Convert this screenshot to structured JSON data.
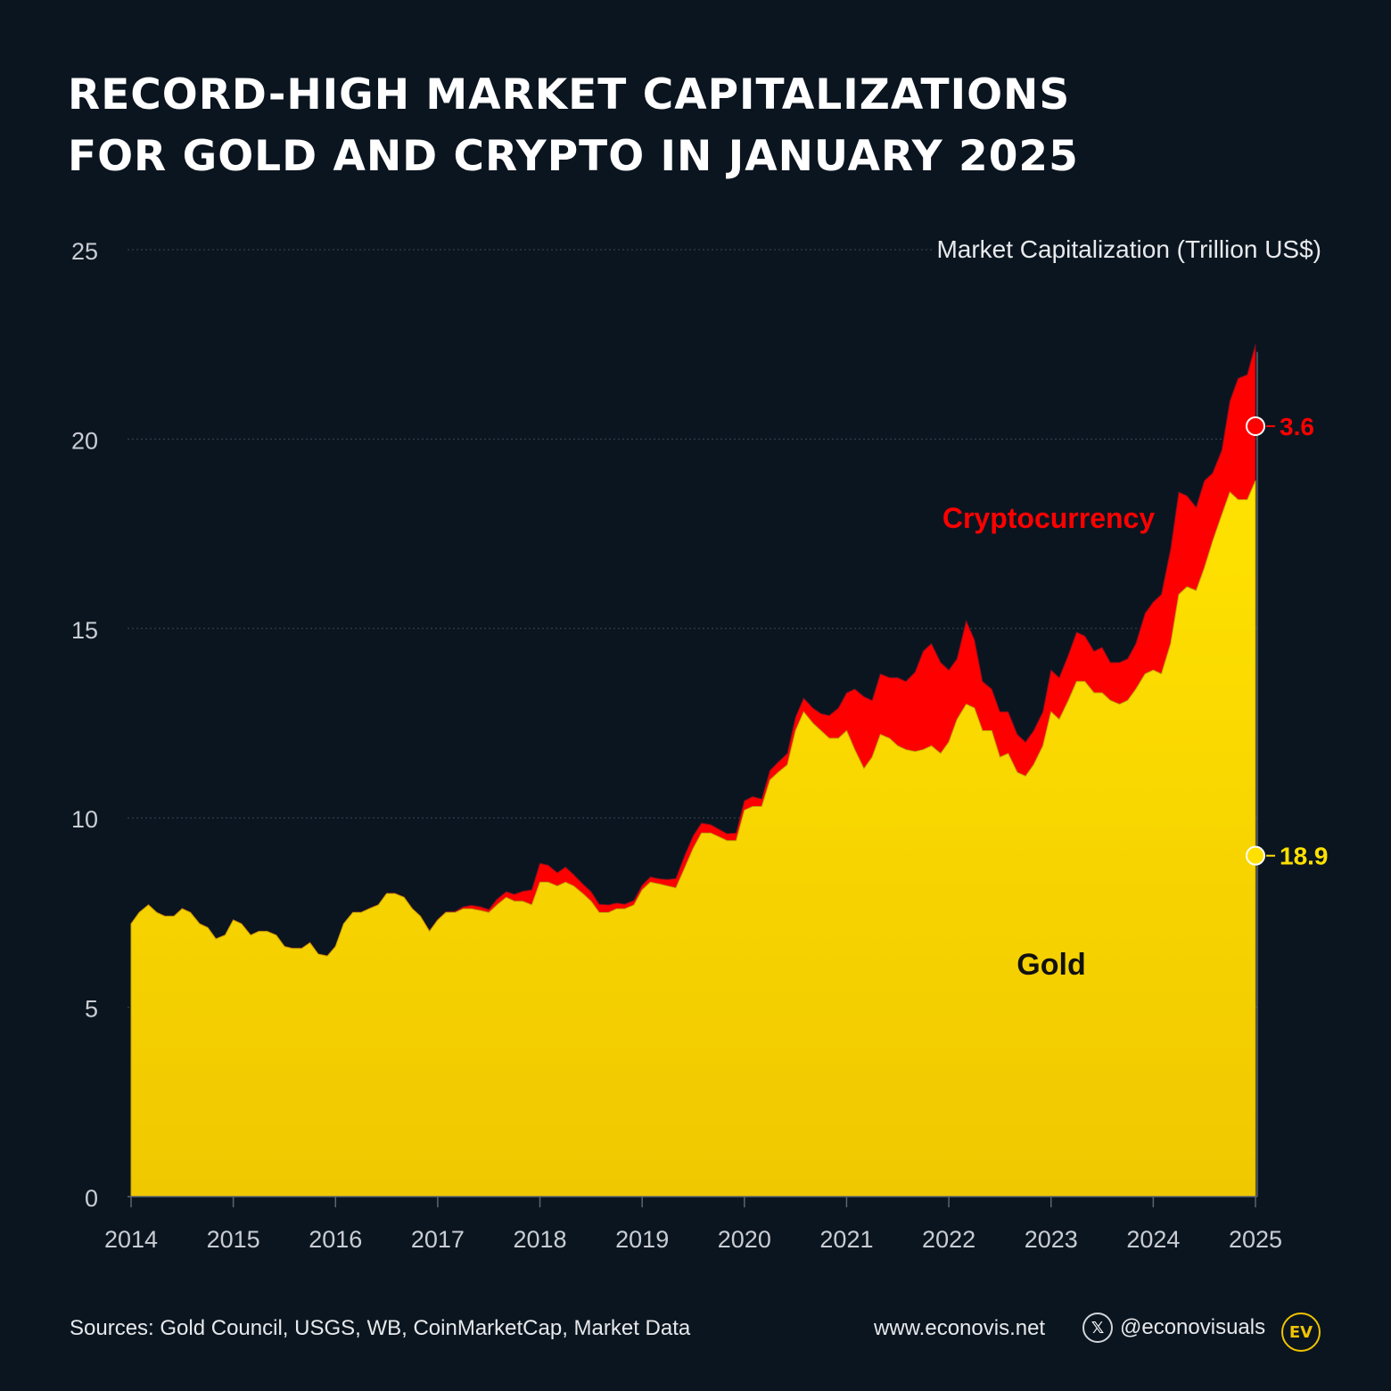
{
  "title": {
    "line1": "RECORD-HIGH MARKET CAPITALIZATIONS",
    "line2": "FOR GOLD AND CRYPTO IN JANUARY 2025"
  },
  "footer": {
    "sources": "Sources: Gold Council, USGS, WB, CoinMarketCap, Market Data",
    "website": "www.econovis.net",
    "social_handle": "@econovisuals",
    "social_icon": "x-icon",
    "logo_text": "EV"
  },
  "colors": {
    "background": "#0b1520",
    "gold": "#f5d000",
    "gold_light": "#ffe400",
    "crypto": "#ff0000",
    "grid": "#3a4654",
    "axis_text": "#c9cdd2"
  },
  "chart_data": {
    "type": "area",
    "stacked": true,
    "title": "RECORD-HIGH MARKET CAPITALIZATIONS FOR GOLD AND CRYPTO IN JANUARY 2025",
    "ylabel": "Market Capitalization (Trillion US$)",
    "xlabel": "",
    "ylim": [
      0,
      25
    ],
    "xlim": [
      2014,
      2025.05
    ],
    "yticks": [
      0,
      5,
      10,
      15,
      20,
      25
    ],
    "xticks": [
      2014,
      2015,
      2016,
      2017,
      2018,
      2019,
      2020,
      2021,
      2022,
      2023,
      2024,
      2025
    ],
    "grid": true,
    "legend": "inline labels",
    "series_labels": {
      "gold": "Gold",
      "crypto": "Cryptocurrency"
    },
    "x": [
      2014.0,
      2014.08,
      2014.17,
      2014.25,
      2014.33,
      2014.42,
      2014.5,
      2014.58,
      2014.67,
      2014.75,
      2014.83,
      2014.92,
      2015.0,
      2015.08,
      2015.17,
      2015.25,
      2015.33,
      2015.42,
      2015.5,
      2015.58,
      2015.67,
      2015.75,
      2015.83,
      2015.92,
      2016.0,
      2016.08,
      2016.17,
      2016.25,
      2016.33,
      2016.42,
      2016.5,
      2016.58,
      2016.67,
      2016.75,
      2016.83,
      2016.92,
      2017.0,
      2017.08,
      2017.17,
      2017.25,
      2017.33,
      2017.42,
      2017.5,
      2017.58,
      2017.67,
      2017.75,
      2017.83,
      2017.92,
      2018.0,
      2018.08,
      2018.17,
      2018.25,
      2018.33,
      2018.42,
      2018.5,
      2018.58,
      2018.67,
      2018.75,
      2018.83,
      2018.92,
      2019.0,
      2019.08,
      2019.17,
      2019.25,
      2019.33,
      2019.42,
      2019.5,
      2019.58,
      2019.67,
      2019.75,
      2019.83,
      2019.92,
      2020.0,
      2020.08,
      2020.17,
      2020.25,
      2020.33,
      2020.42,
      2020.5,
      2020.58,
      2020.67,
      2020.75,
      2020.83,
      2020.92,
      2021.0,
      2021.08,
      2021.17,
      2021.25,
      2021.33,
      2021.42,
      2021.5,
      2021.58,
      2021.67,
      2021.75,
      2021.83,
      2021.92,
      2022.0,
      2022.08,
      2022.17,
      2022.25,
      2022.33,
      2022.42,
      2022.5,
      2022.58,
      2022.67,
      2022.75,
      2022.83,
      2022.92,
      2023.0,
      2023.08,
      2023.17,
      2023.25,
      2023.33,
      2023.42,
      2023.5,
      2023.58,
      2023.67,
      2023.75,
      2023.83,
      2023.92,
      2024.0,
      2024.08,
      2024.17,
      2024.25,
      2024.33,
      2024.42,
      2024.5,
      2024.58,
      2024.67,
      2024.75,
      2024.83,
      2024.92,
      2025.0
    ],
    "series": [
      {
        "name": "Gold",
        "values": [
          7.2,
          7.5,
          7.7,
          7.5,
          7.4,
          7.4,
          7.6,
          7.5,
          7.2,
          7.1,
          6.8,
          6.9,
          7.3,
          7.2,
          6.9,
          7.0,
          7.0,
          6.9,
          6.6,
          6.55,
          6.55,
          6.7,
          6.4,
          6.35,
          6.6,
          7.2,
          7.5,
          7.5,
          7.6,
          7.7,
          8.0,
          8.0,
          7.9,
          7.6,
          7.4,
          7.0,
          7.3,
          7.5,
          7.5,
          7.6,
          7.6,
          7.55,
          7.5,
          7.7,
          7.9,
          7.8,
          7.8,
          7.7,
          8.3,
          8.3,
          8.2,
          8.3,
          8.2,
          8.0,
          7.8,
          7.5,
          7.5,
          7.6,
          7.6,
          7.7,
          8.1,
          8.3,
          8.25,
          8.2,
          8.15,
          8.7,
          9.2,
          9.6,
          9.6,
          9.5,
          9.4,
          9.4,
          10.2,
          10.3,
          10.3,
          11.0,
          11.2,
          11.4,
          12.3,
          12.8,
          12.5,
          12.3,
          12.1,
          12.1,
          12.3,
          11.8,
          11.3,
          11.6,
          12.2,
          12.1,
          11.9,
          11.8,
          11.75,
          11.8,
          11.9,
          11.7,
          12.0,
          12.6,
          13.0,
          12.9,
          12.3,
          12.3,
          11.6,
          11.7,
          11.2,
          11.1,
          11.4,
          11.9,
          12.8,
          12.6,
          13.1,
          13.6,
          13.6,
          13.3,
          13.3,
          13.1,
          13.0,
          13.1,
          13.4,
          13.8,
          13.9,
          13.8,
          14.6,
          15.9,
          16.1,
          16.0,
          16.6,
          17.3,
          18.0,
          18.6,
          18.4,
          18.4,
          18.9
        ]
      },
      {
        "name": "Cryptocurrency",
        "values": [
          0.01,
          0.01,
          0.01,
          0.01,
          0.01,
          0.01,
          0.01,
          0.01,
          0.01,
          0.01,
          0.01,
          0.01,
          0.01,
          0.01,
          0.01,
          0.01,
          0.01,
          0.01,
          0.01,
          0.01,
          0.01,
          0.01,
          0.01,
          0.01,
          0.01,
          0.01,
          0.01,
          0.01,
          0.01,
          0.01,
          0.01,
          0.01,
          0.01,
          0.01,
          0.01,
          0.02,
          0.02,
          0.02,
          0.03,
          0.05,
          0.09,
          0.1,
          0.08,
          0.15,
          0.15,
          0.18,
          0.26,
          0.4,
          0.5,
          0.45,
          0.35,
          0.4,
          0.3,
          0.25,
          0.25,
          0.22,
          0.2,
          0.15,
          0.12,
          0.12,
          0.12,
          0.14,
          0.14,
          0.17,
          0.25,
          0.33,
          0.33,
          0.26,
          0.22,
          0.2,
          0.18,
          0.2,
          0.25,
          0.26,
          0.2,
          0.25,
          0.27,
          0.3,
          0.35,
          0.36,
          0.4,
          0.45,
          0.6,
          0.8,
          1.0,
          1.6,
          1.9,
          1.5,
          1.6,
          1.6,
          1.8,
          1.8,
          2.1,
          2.6,
          2.7,
          2.4,
          1.9,
          1.6,
          2.2,
          1.8,
          1.3,
          1.1,
          1.2,
          1.1,
          1.0,
          0.9,
          0.9,
          0.9,
          1.1,
          1.1,
          1.2,
          1.3,
          1.2,
          1.1,
          1.2,
          1.0,
          1.1,
          1.1,
          1.2,
          1.6,
          1.8,
          2.1,
          2.5,
          2.7,
          2.4,
          2.2,
          2.3,
          1.8,
          1.7,
          2.4,
          3.2,
          3.3,
          3.6
        ]
      }
    ],
    "end_labels": {
      "crypto": "3.6",
      "gold": "18.9"
    },
    "inline_labels": {
      "crypto": "Cryptocurrency",
      "gold": "Gold"
    }
  }
}
